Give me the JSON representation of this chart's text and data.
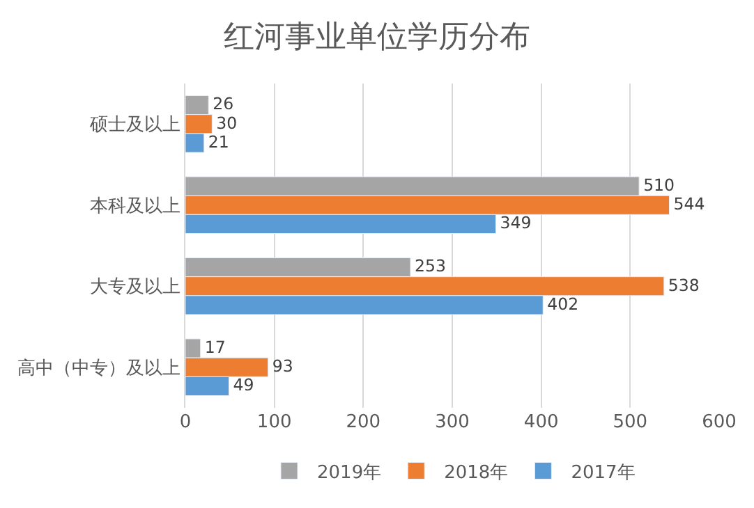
{
  "chart_data": {
    "type": "bar",
    "title": "红河事业单位学历分布",
    "orientation": "horizontal",
    "categories": [
      "硕士及以上",
      "本科及以上",
      "大专及以上",
      "高中（中专）及以上"
    ],
    "series": [
      {
        "name": "2019年",
        "color": "#a5a5a5",
        "values": [
          26,
          510,
          253,
          17
        ]
      },
      {
        "name": "2018年",
        "color": "#ed7d31",
        "values": [
          30,
          544,
          538,
          93
        ]
      },
      {
        "name": "2017年",
        "color": "#5b9bd5",
        "values": [
          21,
          349,
          402,
          49
        ]
      }
    ],
    "xlim": [
      0,
      600
    ],
    "xticks": [
      0,
      100,
      200,
      300,
      400,
      500,
      600
    ],
    "grid": "x",
    "legend": "bottom",
    "data_labels": true
  }
}
